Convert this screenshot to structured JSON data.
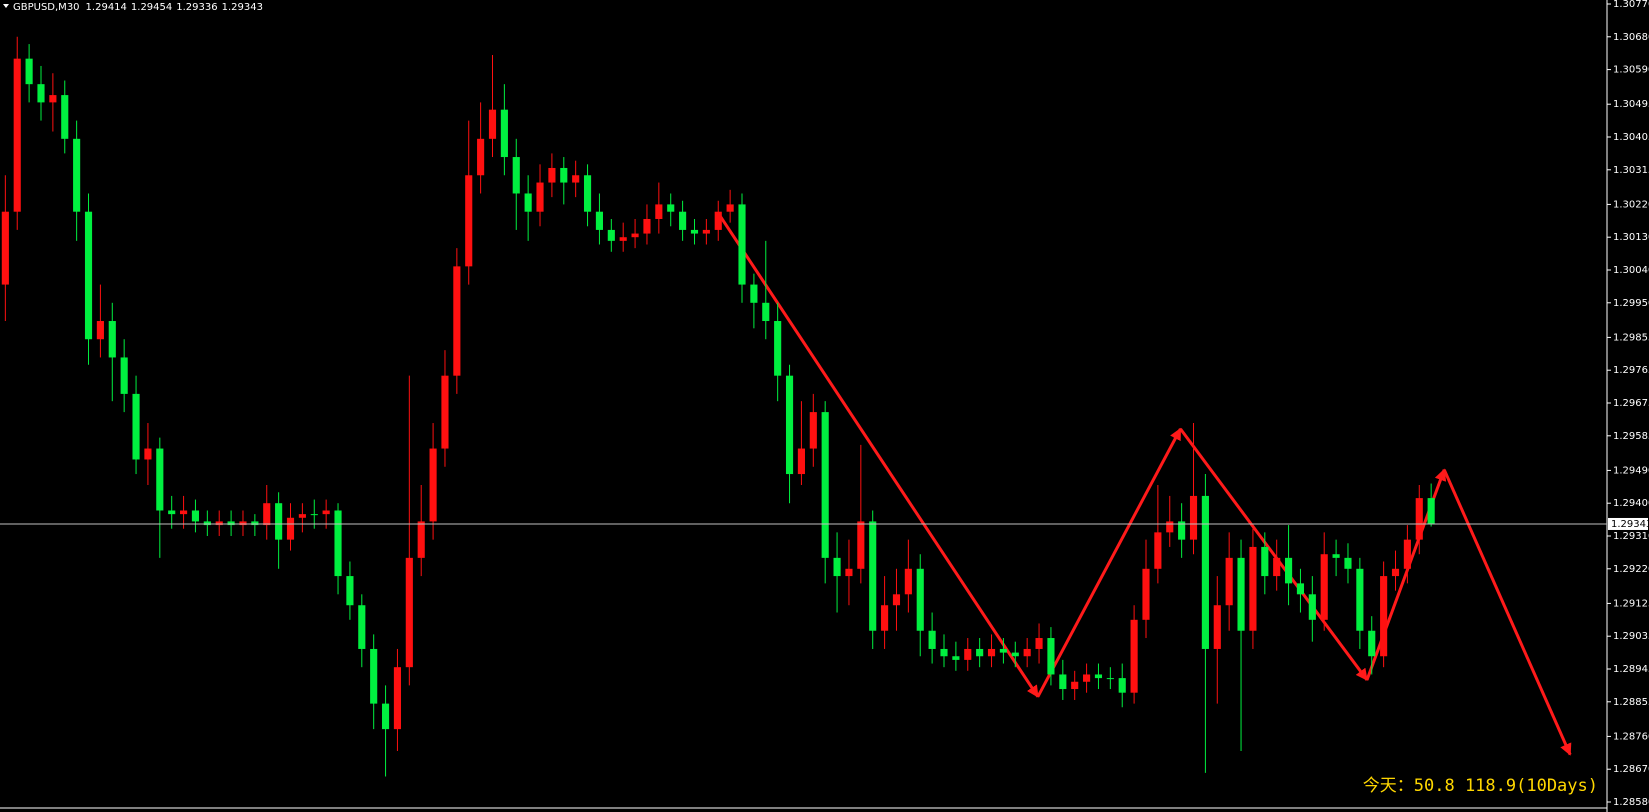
{
  "chart_data": {
    "type": "candlestick",
    "title": "GBPUSD,M30",
    "note": "今天：50.8   118.9(10Days)",
    "background": "#000000",
    "up_color": "#ff1010",
    "down_color": "#00f040",
    "price_line_color": "#c0c0c0",
    "grid": false,
    "xlim": [
      -0.45,
      134.8
    ],
    "ylim": [
      1.2858,
      1.3077
    ],
    "yticks": [
      {
        "value": 1.3077,
        "label": "1.30770"
      },
      {
        "value": 1.3068,
        "label": "1.30680"
      },
      {
        "value": 1.3059,
        "label": "1.30590"
      },
      1.30495,
      1.30405,
      1.30315,
      {
        "value": 1.3022,
        "label": "1.30220"
      },
      {
        "value": 1.3013,
        "label": "1.30130"
      },
      {
        "value": 1.3004,
        "label": "1.30040"
      },
      {
        "value": 1.2995,
        "label": "1.29950"
      },
      1.29855,
      1.29765,
      1.29675,
      1.29585,
      {
        "value": 1.2949,
        "label": "1.29490"
      },
      {
        "value": 1.294,
        "label": "1.29400"
      },
      {
        "value": 1.2931,
        "label": "1.29310"
      },
      {
        "value": 1.2922,
        "label": "1.29220"
      },
      1.29125,
      1.29035,
      1.28945,
      1.28855,
      {
        "value": 1.2876,
        "label": "1.28760"
      },
      {
        "value": 1.2867,
        "label": "1.28670"
      },
      {
        "value": 1.2858,
        "label": "1.28580"
      }
    ],
    "open": [
      1.3,
      1.302,
      1.3062,
      1.3055,
      1.305,
      1.3052,
      1.304,
      1.302,
      1.2985,
      1.299,
      1.298,
      1.297,
      1.2952,
      1.2955,
      1.2938,
      1.2937,
      1.2938,
      1.2935,
      1.2934,
      1.2935,
      1.2934,
      1.2935,
      1.2934,
      1.294,
      1.293,
      1.2936,
      1.2937,
      1.2937,
      1.2938,
      1.292,
      1.2912,
      1.29,
      1.2885,
      1.2878,
      1.2895,
      1.2925,
      1.2935,
      1.2955,
      1.2975,
      1.3005,
      1.303,
      1.304,
      1.3048,
      1.3035,
      1.3025,
      1.302,
      1.3028,
      1.3032,
      1.3028,
      1.303,
      1.302,
      1.3015,
      1.3012,
      1.3013,
      1.3014,
      1.3018,
      1.3022,
      1.302,
      1.3015,
      1.3014,
      1.3015,
      1.302,
      1.3022,
      1.3,
      1.2995,
      1.299,
      1.2975,
      1.2948,
      1.2955,
      1.2965,
      1.2925,
      1.292,
      1.2922,
      1.2935,
      1.2905,
      1.2912,
      1.2915,
      1.2922,
      1.2905,
      1.29,
      1.2898,
      1.2897,
      1.29,
      1.2898,
      1.29,
      1.2899,
      1.2898,
      1.29,
      1.2903,
      1.2893,
      1.2889,
      1.2891,
      1.2893,
      1.2892,
      1.2892,
      1.2888,
      1.2908,
      1.2922,
      1.2932,
      1.2935,
      1.293,
      1.2942,
      1.29,
      1.2912,
      1.2925,
      1.2905,
      1.2928,
      1.292,
      1.2925,
      1.2918,
      1.2915,
      1.2908,
      1.2926,
      1.2925,
      1.2922,
      1.2905,
      1.2898,
      1.292,
      1.2922,
      1.293,
      1.29414
    ],
    "high": [
      1.303,
      1.3068,
      1.3066,
      1.306,
      1.3058,
      1.3056,
      1.3045,
      1.3025,
      1.3,
      1.2995,
      1.2985,
      1.2975,
      1.2962,
      1.2958,
      1.2942,
      1.2942,
      1.2941,
      1.2938,
      1.2938,
      1.2938,
      1.2938,
      1.2937,
      1.2945,
      1.2943,
      1.294,
      1.294,
      1.2941,
      1.2941,
      1.294,
      1.2924,
      1.2915,
      1.2904,
      1.289,
      1.29,
      1.2975,
      1.2945,
      1.2962,
      1.2982,
      1.301,
      1.3045,
      1.305,
      1.3063,
      1.3055,
      1.304,
      1.303,
      1.3033,
      1.3036,
      1.3035,
      1.3034,
      1.3033,
      1.3025,
      1.3018,
      1.3017,
      1.3018,
      1.3022,
      1.3028,
      1.3025,
      1.3023,
      1.3018,
      1.3018,
      1.3023,
      1.3026,
      1.3025,
      1.3003,
      1.3012,
      1.2995,
      1.2978,
      1.2968,
      1.297,
      1.2968,
      1.2932,
      1.293,
      1.2956,
      1.2938,
      1.292,
      1.2922,
      1.293,
      1.2926,
      1.291,
      1.2904,
      1.2902,
      1.2903,
      1.2903,
      1.2904,
      1.2903,
      1.2902,
      1.2903,
      1.2907,
      1.2906,
      1.2897,
      1.2894,
      1.2896,
      1.2896,
      1.2895,
      1.2896,
      1.2912,
      1.293,
      1.2945,
      1.2942,
      1.294,
      1.2962,
      1.2948,
      1.292,
      1.2932,
      1.293,
      1.2933,
      1.2932,
      1.293,
      1.2934,
      1.2922,
      1.292,
      1.2932,
      1.293,
      1.2929,
      1.2925,
      1.2909,
      1.2924,
      1.2927,
      1.2934,
      1.2945,
      1.29454
    ],
    "low": [
      1.299,
      1.3015,
      1.305,
      1.3045,
      1.3042,
      1.3036,
      1.3012,
      1.2978,
      1.298,
      1.2968,
      1.2965,
      1.2948,
      1.2945,
      1.2925,
      1.2933,
      1.2933,
      1.2932,
      1.2931,
      1.2931,
      1.2931,
      1.2931,
      1.2931,
      1.293,
      1.2922,
      1.2927,
      1.2932,
      1.2933,
      1.2933,
      1.2915,
      1.2908,
      1.2895,
      1.2878,
      1.2865,
      1.2872,
      1.289,
      1.292,
      1.293,
      1.295,
      1.297,
      1.3,
      1.3025,
      1.3035,
      1.303,
      1.3015,
      1.3012,
      1.3016,
      1.3024,
      1.3022,
      1.3024,
      1.3016,
      1.3011,
      1.3009,
      1.3009,
      1.301,
      1.3011,
      1.3014,
      1.3016,
      1.3012,
      1.3011,
      1.3011,
      1.3012,
      1.3017,
      1.2995,
      1.2988,
      1.2985,
      1.2968,
      1.294,
      1.2945,
      1.295,
      1.2918,
      1.291,
      1.2912,
      1.2918,
      1.29,
      1.29,
      1.2905,
      1.291,
      1.2898,
      1.2896,
      1.2895,
      1.2894,
      1.2894,
      1.2895,
      1.2895,
      1.2896,
      1.2895,
      1.2895,
      1.2896,
      1.289,
      1.2886,
      1.2886,
      1.2888,
      1.2889,
      1.2889,
      1.2884,
      1.2885,
      1.2903,
      1.2918,
      1.2928,
      1.2925,
      1.2926,
      1.2866,
      1.2885,
      1.2905,
      1.2872,
      1.29,
      1.2915,
      1.2916,
      1.2912,
      1.291,
      1.2902,
      1.2905,
      1.292,
      1.2918,
      1.29,
      1.2893,
      1.2895,
      1.2916,
      1.2918,
      1.2926,
      1.29336
    ],
    "close": [
      1.302,
      1.3062,
      1.3055,
      1.305,
      1.3052,
      1.304,
      1.302,
      1.2985,
      1.299,
      1.298,
      1.297,
      1.2952,
      1.2955,
      1.2938,
      1.2937,
      1.2938,
      1.2935,
      1.2934,
      1.2935,
      1.2934,
      1.2935,
      1.2934,
      1.294,
      1.293,
      1.2936,
      1.2937,
      1.2937,
      1.2938,
      1.292,
      1.2912,
      1.29,
      1.2885,
      1.2878,
      1.2895,
      1.2925,
      1.2935,
      1.2955,
      1.2975,
      1.3005,
      1.303,
      1.304,
      1.3048,
      1.3035,
      1.3025,
      1.302,
      1.3028,
      1.3032,
      1.3028,
      1.303,
      1.302,
      1.3015,
      1.3012,
      1.3013,
      1.3014,
      1.3018,
      1.3022,
      1.302,
      1.3015,
      1.3014,
      1.3015,
      1.302,
      1.3022,
      1.3,
      1.2995,
      1.299,
      1.2975,
      1.2948,
      1.2955,
      1.2965,
      1.2925,
      1.292,
      1.2922,
      1.2935,
      1.2905,
      1.2912,
      1.2915,
      1.2922,
      1.2905,
      1.29,
      1.2898,
      1.2897,
      1.29,
      1.2898,
      1.29,
      1.2899,
      1.2898,
      1.29,
      1.2903,
      1.2893,
      1.2889,
      1.2891,
      1.2893,
      1.2892,
      1.2892,
      1.2888,
      1.2908,
      1.2922,
      1.2932,
      1.2935,
      1.293,
      1.2942,
      1.29,
      1.2912,
      1.2925,
      1.2905,
      1.2928,
      1.292,
      1.2925,
      1.2918,
      1.2915,
      1.2908,
      1.2926,
      1.2925,
      1.2922,
      1.2905,
      1.2898,
      1.292,
      1.2922,
      1.293,
      1.29414,
      1.29343
    ],
    "annotation": {
      "color": "#ff1a1a",
      "x": [
        60,
        86.9,
        98.9,
        114.6,
        121.1,
        131.7
      ],
      "y": [
        1.30196,
        1.28869,
        1.29604,
        1.28915,
        1.29492,
        1.2871
      ]
    }
  }
}
